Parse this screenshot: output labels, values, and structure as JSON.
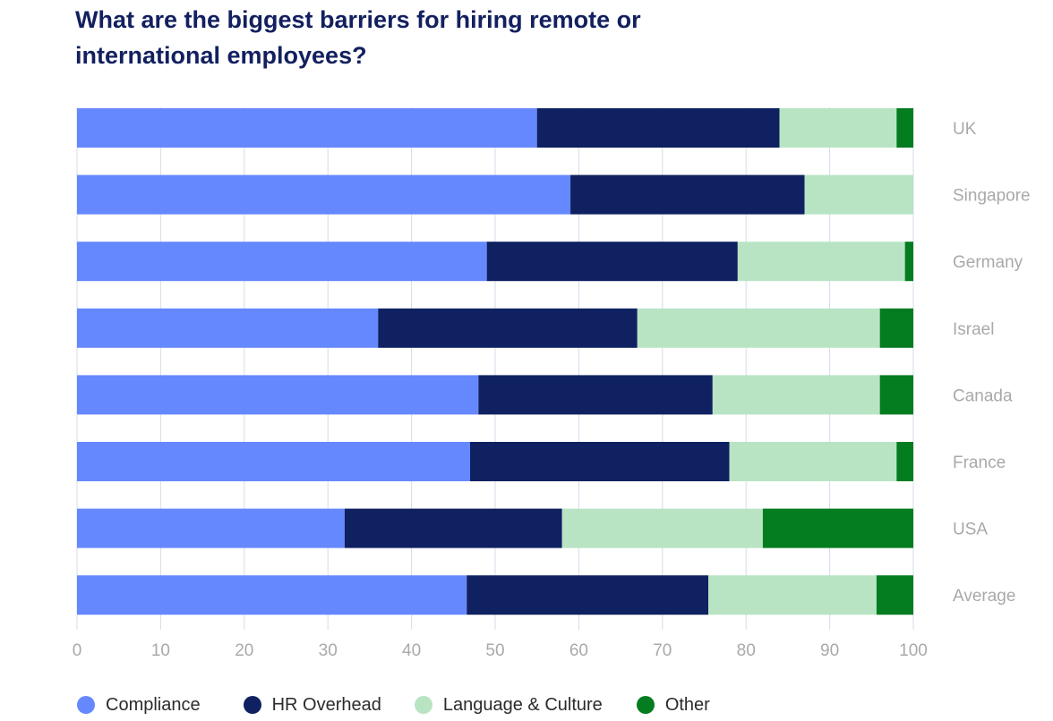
{
  "title": "What are the biggest barriers for hiring remote or international employees?",
  "chart_data": {
    "type": "bar",
    "orientation": "horizontal",
    "stacked": true,
    "title": "What are the biggest barriers for hiring remote or international employees?",
    "categories": [
      "UK",
      "Singapore",
      "Germany",
      "Israel",
      "Canada",
      "France",
      "USA",
      "Average"
    ],
    "series": [
      {
        "name": "Compliance",
        "color": "#6688ff",
        "values": [
          55,
          59,
          49,
          36,
          48,
          47,
          32,
          46.6
        ]
      },
      {
        "name": "HR Overhead",
        "color": "#0f2160",
        "values": [
          29,
          28,
          30,
          31,
          28,
          31,
          26,
          28.9
        ]
      },
      {
        "name": "Language & Culture",
        "color": "#b8e4c4",
        "values": [
          14,
          13,
          20,
          29,
          20,
          20,
          24,
          20.1
        ]
      },
      {
        "name": "Other",
        "color": "#047c20",
        "values": [
          2,
          0,
          1,
          4,
          4,
          2,
          18,
          4.4
        ]
      }
    ],
    "xlim": [
      0,
      100
    ],
    "xticks": [
      "0",
      "10",
      "20",
      "30",
      "40",
      "50",
      "60",
      "70",
      "80",
      "90",
      "100"
    ],
    "grid": "vertical",
    "category_labels_position": "right",
    "legend_position": "bottom-left"
  }
}
